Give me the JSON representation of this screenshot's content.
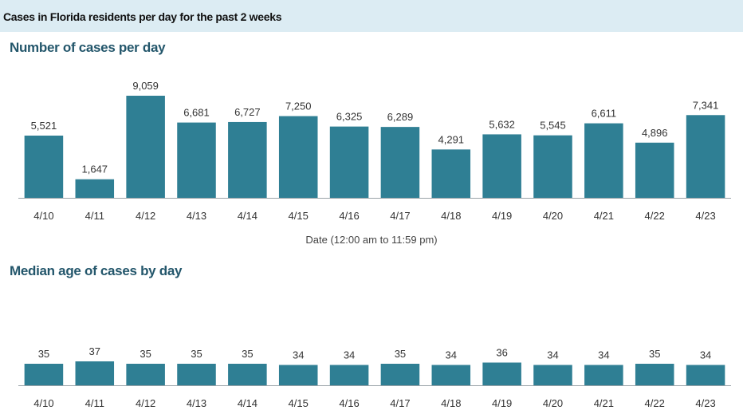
{
  "header": {
    "title": "Cases in Florida residents per day for the past 2 weeks"
  },
  "colors": {
    "bar": "#2f7f94",
    "title": "#23566b",
    "header_bg": "#dcecf3"
  },
  "chart_data": [
    {
      "type": "bar",
      "title": "Number of cases per day",
      "xlabel": "Date (12:00 am to 11:59 pm)",
      "ylabel": "",
      "categories": [
        "4/10",
        "4/11",
        "4/12",
        "4/13",
        "4/14",
        "4/15",
        "4/16",
        "4/17",
        "4/18",
        "4/19",
        "4/20",
        "4/21",
        "4/22",
        "4/23"
      ],
      "values": [
        5521,
        1647,
        9059,
        6681,
        6727,
        7250,
        6325,
        6289,
        4291,
        5632,
        5545,
        6611,
        4896,
        7341
      ],
      "value_labels": [
        "5,521",
        "1,647",
        "9,059",
        "6,681",
        "6,727",
        "7,250",
        "6,325",
        "6,289",
        "4,291",
        "5,632",
        "5,545",
        "6,611",
        "4,896",
        "7,341"
      ],
      "ylim": [
        0,
        9059
      ],
      "grid": false
    },
    {
      "type": "bar",
      "title": "Median age of cases by day",
      "xlabel": "",
      "ylabel": "",
      "categories": [
        "4/10",
        "4/11",
        "4/12",
        "4/13",
        "4/14",
        "4/15",
        "4/16",
        "4/17",
        "4/18",
        "4/19",
        "4/20",
        "4/21",
        "4/22",
        "4/23"
      ],
      "values": [
        35,
        37,
        35,
        35,
        35,
        34,
        34,
        35,
        34,
        36,
        34,
        34,
        35,
        34
      ],
      "value_labels": [
        "35",
        "37",
        "35",
        "35",
        "35",
        "34",
        "34",
        "35",
        "34",
        "36",
        "34",
        "34",
        "35",
        "34"
      ],
      "ylim": [
        0,
        37
      ],
      "grid": false
    }
  ]
}
